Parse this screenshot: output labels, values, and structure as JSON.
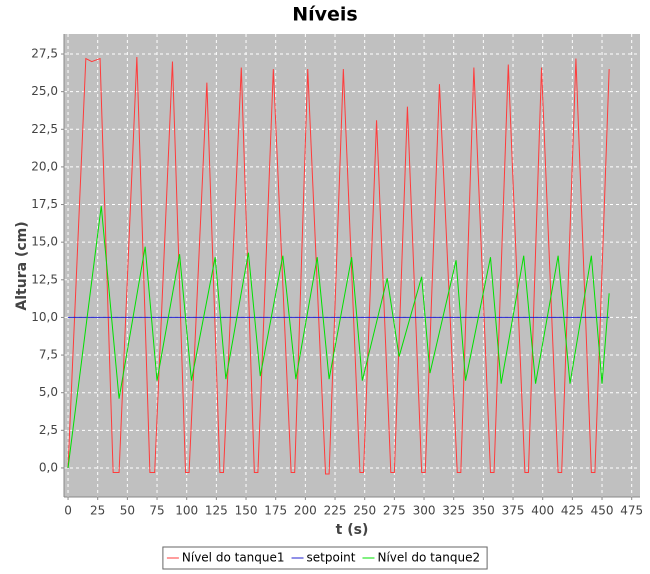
{
  "chart_data": {
    "type": "line",
    "title": "Níveis",
    "x_label": "t (s)",
    "y_label": "Altura (cm)",
    "series": [
      {
        "name": "Nível do tanque1",
        "color": "#ff3b3b",
        "x": [
          0,
          15,
          20,
          27,
          38,
          43,
          58,
          69,
          73,
          88,
          99,
          102,
          117,
          128,
          131,
          146,
          157,
          160,
          173,
          188,
          191,
          202,
          217,
          220,
          232,
          246,
          249,
          260,
          272,
          275,
          286,
          298,
          301,
          313,
          328,
          331,
          342,
          356,
          359,
          371,
          385,
          388,
          399,
          413,
          416,
          428,
          441,
          444,
          456
        ],
        "values": [
          0,
          27.2,
          27.0,
          27.2,
          -0.3,
          -0.3,
          27.3,
          -0.3,
          -0.3,
          27.0,
          -0.3,
          -0.3,
          25.6,
          -0.3,
          -0.3,
          26.6,
          -0.3,
          -0.3,
          26.5,
          -0.3,
          -0.3,
          26.5,
          -0.4,
          -0.4,
          26.5,
          -0.3,
          -0.3,
          23.1,
          -0.3,
          -0.3,
          24.0,
          -0.3,
          -0.3,
          25.5,
          -0.3,
          -0.3,
          26.6,
          -0.3,
          -0.3,
          26.8,
          -0.3,
          -0.3,
          26.6,
          -0.3,
          -0.3,
          27.2,
          -0.3,
          -0.3,
          26.5
        ]
      },
      {
        "name": "setpoint",
        "color": "#2020d0",
        "x": [
          0,
          456
        ],
        "values": [
          10,
          10
        ]
      },
      {
        "name": "Nível do tanque2",
        "color": "#00e000",
        "x": [
          0,
          28,
          43,
          65,
          75,
          94,
          104,
          124,
          133,
          152,
          162,
          181,
          192,
          210,
          220,
          239,
          248,
          269,
          279,
          298,
          305,
          327,
          335,
          356,
          365,
          384,
          394,
          413,
          423,
          441,
          450,
          456
        ],
        "values": [
          0,
          17.4,
          4.6,
          14.7,
          5.8,
          14.2,
          5.8,
          14.0,
          5.9,
          14.3,
          6.1,
          14.1,
          5.9,
          14.0,
          5.9,
          14.0,
          5.8,
          12.6,
          7.4,
          12.7,
          6.3,
          13.8,
          5.8,
          14.0,
          5.6,
          14.1,
          5.6,
          14.1,
          5.6,
          14.1,
          5.6,
          11.6
        ]
      }
    ],
    "xlim": [
      -3.4,
      482
    ],
    "ylim": [
      -1.93,
      28.83
    ],
    "xticks": [
      0,
      25,
      50,
      75,
      100,
      125,
      150,
      175,
      200,
      225,
      250,
      275,
      300,
      325,
      350,
      375,
      400,
      425,
      450,
      475
    ],
    "yticks": [
      {
        "value": 0,
        "label": "0,0"
      },
      {
        "value": 2.5,
        "label": "2,5"
      },
      {
        "value": 5,
        "label": "5,0"
      },
      {
        "value": 7.5,
        "label": "7,5"
      },
      {
        "value": 10,
        "label": "10,0"
      },
      {
        "value": 12.5,
        "label": "12,5"
      },
      {
        "value": 15,
        "label": "15,0"
      },
      {
        "value": 17.5,
        "label": "17,5"
      },
      {
        "value": 20,
        "label": "20,0"
      },
      {
        "value": 22.5,
        "label": "22,5"
      },
      {
        "value": 25,
        "label": "25,0"
      },
      {
        "value": 27.5,
        "label": "27,5"
      }
    ],
    "grid": true,
    "legend": "bottom"
  }
}
